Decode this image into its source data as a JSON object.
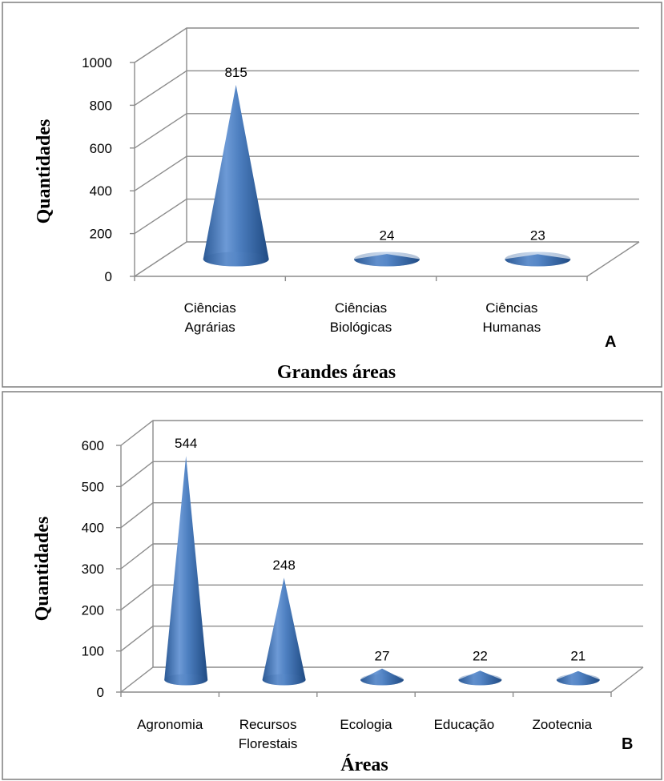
{
  "chart_data": [
    {
      "type": "bar",
      "shape": "cone-3d",
      "panel_label": "A",
      "categories": [
        [
          "Ciências",
          "Agrárias"
        ],
        [
          "Ciências",
          "Biológicas"
        ],
        [
          "Ciências",
          "Humanas"
        ]
      ],
      "values": [
        815,
        24,
        23
      ],
      "data_labels": [
        "815",
        "24",
        "23"
      ],
      "ylim": [
        0,
        1000
      ],
      "yticks": [
        "0",
        "200",
        "400",
        "600",
        "800",
        "1000"
      ],
      "ylabel": "Quantidades",
      "xlabel": "Grandes áreas",
      "grid": true,
      "color": "#4f81bd"
    },
    {
      "type": "bar",
      "shape": "cone-3d",
      "panel_label": "B",
      "categories": [
        [
          "Agronomia"
        ],
        [
          "Recursos",
          "Florestais"
        ],
        [
          "Ecologia"
        ],
        [
          "Educação"
        ],
        [
          "Zootecnia"
        ]
      ],
      "values": [
        544,
        248,
        27,
        22,
        21
      ],
      "data_labels": [
        "544",
        "248",
        "27",
        "22",
        "21"
      ],
      "ylim": [
        0,
        600
      ],
      "yticks": [
        "0",
        "100",
        "200",
        "300",
        "400",
        "500",
        "600"
      ],
      "ylabel": "Quantidades",
      "xlabel": "Áreas",
      "grid": true,
      "color": "#4f81bd"
    }
  ]
}
